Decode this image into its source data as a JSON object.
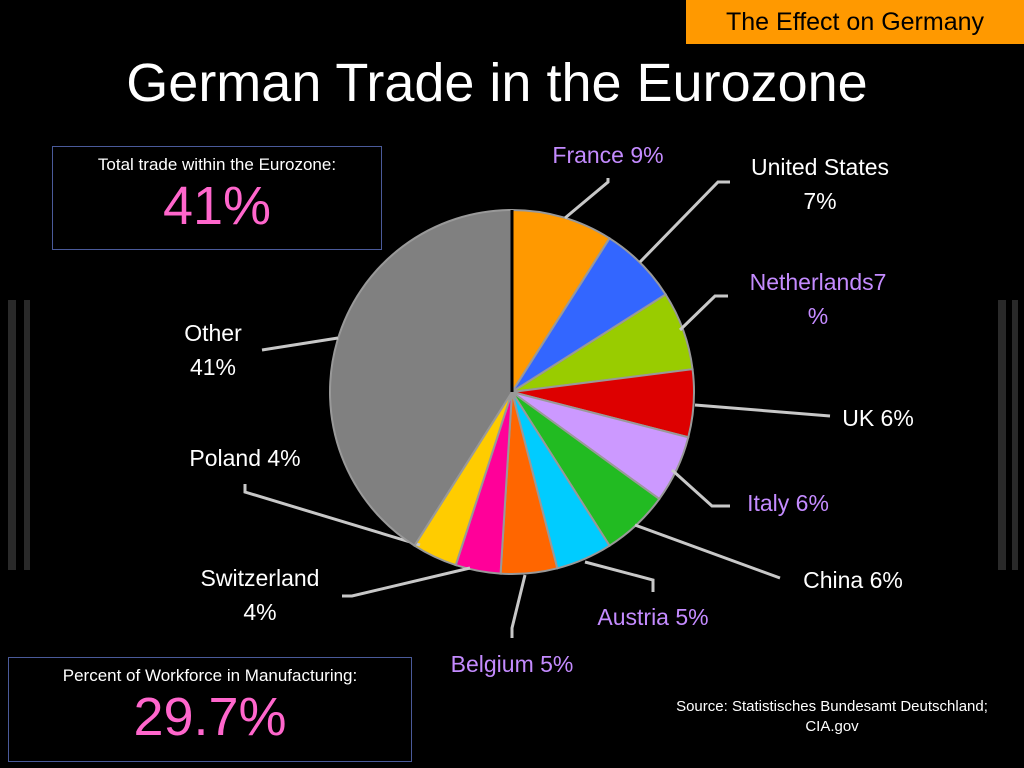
{
  "header": {
    "tag": "The Effect on Germany",
    "title": "German Trade in the Eurozone"
  },
  "stat_boxes": [
    {
      "label": "Total trade within the Eurozone:",
      "value": "41%"
    },
    {
      "label": "Percent of Workforce in Manufacturing:",
      "value": "29.7%"
    }
  ],
  "source": "Source: Statistisches Bundesamt Deutschland;\nCIA.gov",
  "chart_data": {
    "type": "pie",
    "values": [
      9,
      7,
      7,
      6,
      6,
      6,
      5,
      5,
      4,
      4,
      41
    ],
    "value_labels": [
      "France 9%",
      "United States\n7%",
      "Netherlands7\n%",
      "UK 6%",
      "Italy 6%",
      "China 6%",
      "Austria 5%",
      "Belgium 5%",
      "Switzerland\n4%",
      "Poland 4%",
      "Other\n41%"
    ],
    "colors": [
      "#ff9900",
      "#3366ff",
      "#99cc00",
      "#dd0000",
      "#cc99ff",
      "#22bb22",
      "#00ccff",
      "#ff6600",
      "#ff0099",
      "#ffcc00",
      "#808080"
    ],
    "value_label_colors": [
      "#c48bff",
      "#ffffff",
      "#c48bff",
      "#ffffff",
      "#c48bff",
      "#ffffff",
      "#c48bff",
      "#c48bff",
      "#ffffff",
      "#ffffff",
      "#ffffff"
    ]
  }
}
